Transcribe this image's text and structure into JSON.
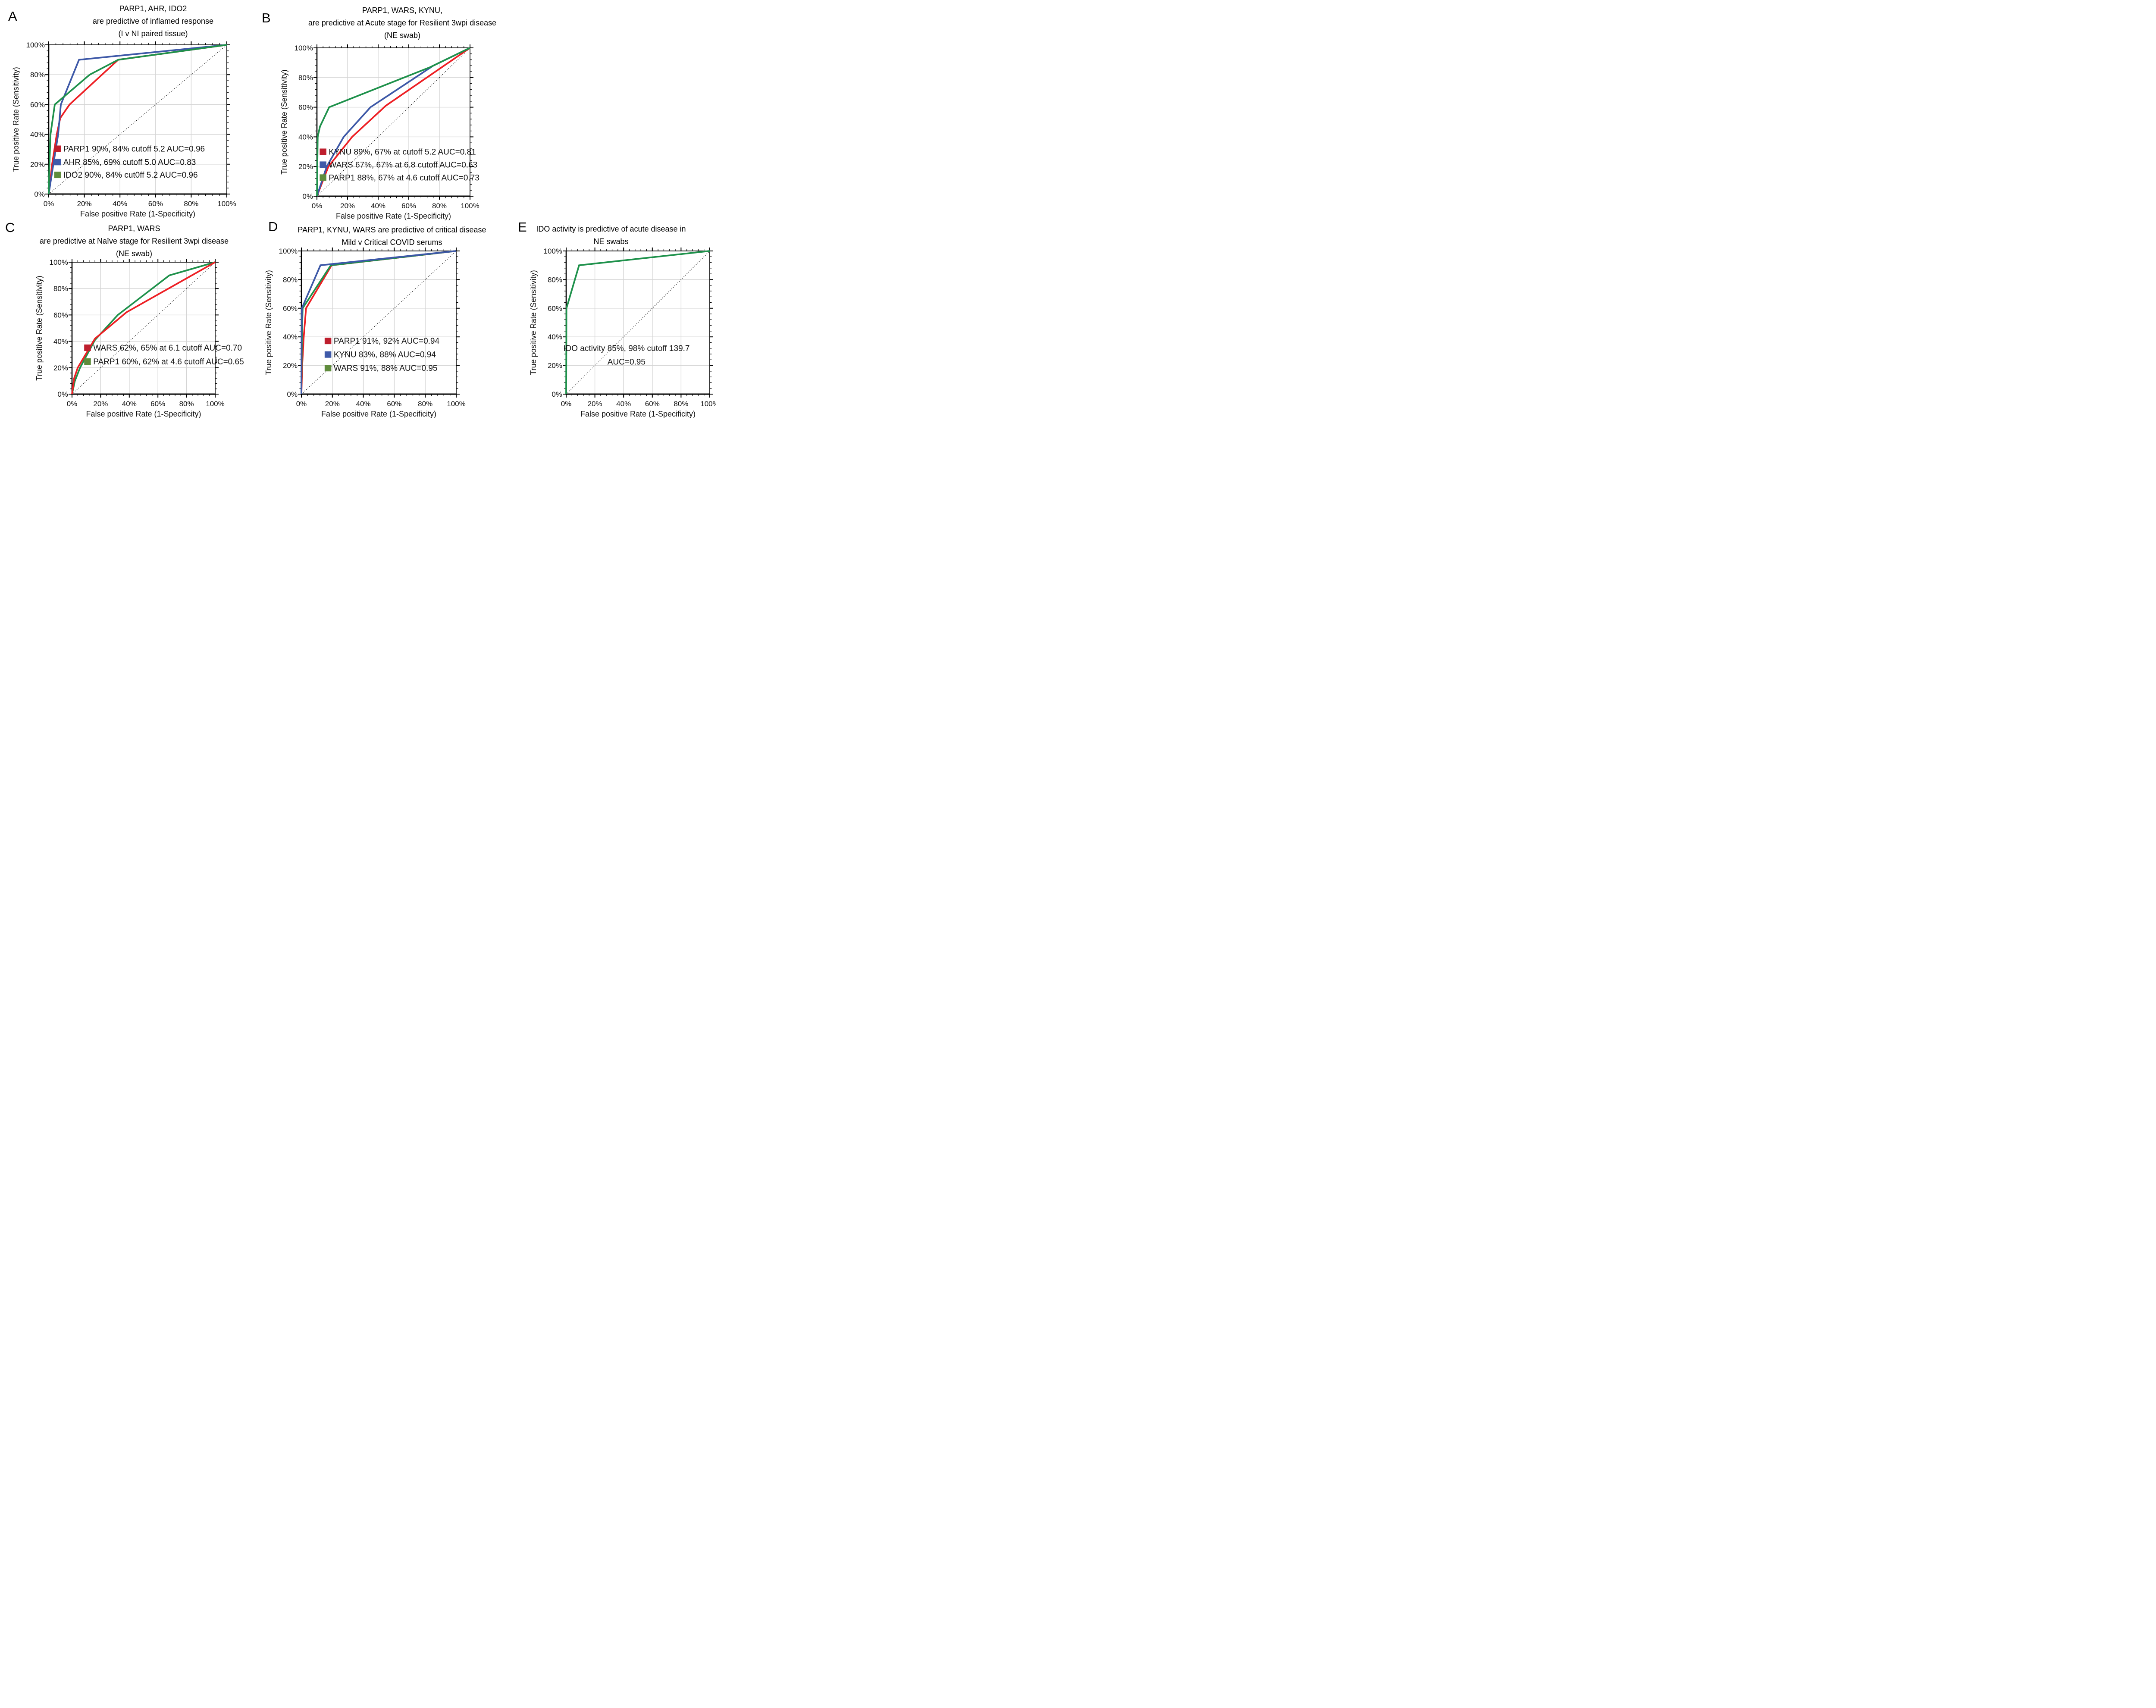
{
  "figure": {
    "background_color": "#ffffff",
    "description_visible_panels": [
      "A",
      "B",
      "C",
      "D",
      "E"
    ]
  },
  "colors": {
    "curve_red": "#ED1F24",
    "curve_blue": "#3D58A7",
    "curve_green": "#1E914B",
    "swatch_red": "#BE1E2D",
    "swatch_blue": "#3F5AA9",
    "swatch_green": "#5F8C3C",
    "gridline": "#D5D5D5",
    "axis": "#000000"
  },
  "panels": [
    {
      "label": "A",
      "title_lines": [
        "PARP1, AHR, IDO2",
        "are predictive of inflamed response",
        "(I v NI paired tissue)"
      ],
      "x_axis": {
        "label": "False positive Rate (1-Specificity)",
        "tick_labels": [
          "0%",
          "20%",
          "40%",
          "60%",
          "80%",
          "100%"
        ]
      },
      "y_axis": {
        "label": "True positive Rate (Sensitivity)",
        "tick_labels": [
          "0%",
          "20%",
          "40%",
          "60%",
          "80%",
          "100%"
        ]
      },
      "legend": [
        {
          "text": "PARP1 90%, 84% cutoff 5.2 AUC=0.96",
          "swatch_color": "#BE1E2D"
        },
        {
          "text": "AHR 85%, 69% cutoff 5.0 AUC=0.83",
          "swatch_color": "#3F5AA9"
        },
        {
          "text": "IDO2 90%, 84% cut0ff 5.2 AUC=0.96",
          "swatch_color": "#5F8C3C"
        }
      ]
    },
    {
      "label": "B",
      "title_lines": [
        "PARP1, WARS, KYNU,",
        "are predictive at Acute stage for Resilient 3wpi disease",
        "(NE swab)"
      ],
      "x_axis": {
        "label": "False positive Rate (1-Specificity)",
        "tick_labels": [
          "0%",
          "20%",
          "40%",
          "60%",
          "80%",
          "100%"
        ]
      },
      "y_axis": {
        "label": "True positive Rate (Sensitivity)",
        "tick_labels": [
          "0%",
          "20%",
          "40%",
          "60%",
          "80%",
          "100%"
        ]
      },
      "legend": [
        {
          "text": "KYNU 89%, 67% at cutoff 5.2 AUC=0.81",
          "swatch_color": "#BE1E2D"
        },
        {
          "text": "WARS 67%, 67% at 6.8 cutoff AUC=0.63",
          "swatch_color": "#3F5AA9"
        },
        {
          "text": "PARP1 88%, 67% at 4.6 cutoff AUC=0.73",
          "swatch_color": "#5F8C3C"
        }
      ]
    },
    {
      "label": "C",
      "title_lines": [
        "PARP1, WARS",
        "are predictive at Naïve stage for Resilient 3wpi disease",
        "(NE swab)"
      ],
      "x_axis": {
        "label": "False positive Rate (1-Specificity)",
        "tick_labels": [
          "0%",
          "20%",
          "40%",
          "60%",
          "80%",
          "100%"
        ]
      },
      "y_axis": {
        "label": "True positive Rate (Sensitivity)",
        "tick_labels": [
          "0%",
          "20%",
          "40%",
          "60%",
          "80%",
          "100%"
        ]
      },
      "legend": [
        {
          "text": "WARS 62%, 65% at 6.1 cutoff AUC=0.70",
          "swatch_color": "#BE1E2D"
        },
        {
          "text": "PARP1 60%, 62% at 4.6 cutoff AUC=0.65",
          "swatch_color": "#5F8C3C"
        }
      ]
    },
    {
      "label": "D",
      "title_lines": [
        "PARP1, KYNU, WARS are predictive of critical disease",
        "Mild v Critical COVID serums"
      ],
      "x_axis": {
        "label": "False positive Rate (1-Specificity)",
        "tick_labels": [
          "0%",
          "20%",
          "40%",
          "60%",
          "80%",
          "100%"
        ]
      },
      "y_axis": {
        "label": "True positive Rate (Sensitivity)",
        "tick_labels": [
          "0%",
          "20%",
          "40%",
          "60%",
          "80%",
          "100%"
        ]
      },
      "legend": [
        {
          "text": "PARP1 91%, 92% AUC=0.94",
          "swatch_color": "#BE1E2D"
        },
        {
          "text": "KYNU 83%, 88% AUC=0.94",
          "swatch_color": "#3F5AA9"
        },
        {
          "text": "WARS 91%, 88% AUC=0.95",
          "swatch_color": "#5F8C3C"
        }
      ]
    },
    {
      "label": "E",
      "title_lines": [
        "IDO activity is predictive of acute disease in",
        "NE swabs"
      ],
      "x_axis": {
        "label": "False positive Rate (1-Specificity)",
        "tick_labels": [
          "0%",
          "20%",
          "40%",
          "60%",
          "80%",
          "100%"
        ]
      },
      "y_axis": {
        "label": "True positive Rate (Sensitivity)",
        "tick_labels": [
          "0%",
          "20%",
          "40%",
          "60%",
          "80%",
          "100%"
        ]
      },
      "legend": [],
      "annotation_lines": [
        "IDO activity 85%, 98% cutoff 139.7",
        "AUC=0.95"
      ]
    }
  ],
  "chart_data": [
    {
      "type": "line",
      "panel": "A",
      "title": "PARP1, AHR, IDO2 are predictive of inflamed response (I v NI paired tissue)",
      "xlabel": "False positive Rate (1-Specificity)",
      "ylabel": "True positive Rate (Sensitivity)",
      "xlim": [
        0,
        100
      ],
      "ylim": [
        0,
        100
      ],
      "x_ticks_percent": [
        0,
        20,
        40,
        60,
        80,
        100
      ],
      "y_ticks_percent": [
        0,
        20,
        40,
        60,
        80,
        100
      ],
      "grid": true,
      "diagonal_reference": true,
      "series": [
        {
          "name": "PARP1",
          "color": "#ED1F24",
          "sensitivity_pct": 90,
          "specificity_pct": 84,
          "cutoff": 5.2,
          "auc": 0.96,
          "points_fpr_tpr_pct": [
            [
              0,
              0
            ],
            [
              1.9,
              20
            ],
            [
              4.5,
              40
            ],
            [
              6.5,
              51
            ],
            [
              11.7,
              60
            ],
            [
              39,
              90
            ],
            [
              100,
              100
            ]
          ]
        },
        {
          "name": "AHR",
          "color": "#3D58A7",
          "sensitivity_pct": 85,
          "specificity_pct": 69,
          "cutoff": 5.0,
          "auc": 0.83,
          "points_fpr_tpr_pct": [
            [
              0,
              0
            ],
            [
              2.6,
              20
            ],
            [
              5.3,
              40
            ],
            [
              6.8,
              60
            ],
            [
              17,
              90
            ],
            [
              100,
              100
            ]
          ]
        },
        {
          "name": "IDO2",
          "color": "#1E914B",
          "sensitivity_pct": 90,
          "specificity_pct": 84,
          "cutoff": 5.2,
          "auc": 0.96,
          "points_fpr_tpr_pct": [
            [
              0,
              0
            ],
            [
              0.4,
              20
            ],
            [
              1,
              40
            ],
            [
              3.4,
              60
            ],
            [
              23,
              80
            ],
            [
              39,
              90
            ],
            [
              100,
              100
            ]
          ]
        }
      ]
    },
    {
      "type": "line",
      "panel": "B",
      "title": "PARP1, WARS, KYNU, are predictive at Acute stage for Resilient 3wpi disease (NE swab)",
      "xlabel": "False positive Rate (1-Specificity)",
      "ylabel": "True positive Rate (Sensitivity)",
      "xlim": [
        0,
        100
      ],
      "ylim": [
        0,
        100
      ],
      "x_ticks_percent": [
        0,
        20,
        40,
        60,
        80,
        100
      ],
      "y_ticks_percent": [
        0,
        20,
        40,
        60,
        80,
        100
      ],
      "grid": true,
      "diagonal_reference": true,
      "series": [
        {
          "name": "KYNU",
          "color": "#ED1F24",
          "sensitivity_pct": 89,
          "specificity_pct": 67,
          "cutoff": 5.2,
          "auc": 0.81,
          "points_fpr_tpr_pct": [
            [
              0,
              0
            ],
            [
              7.5,
              20
            ],
            [
              23,
              40
            ],
            [
              45,
              61
            ],
            [
              100,
              100
            ]
          ]
        },
        {
          "name": "WARS",
          "color": "#3D58A7",
          "sensitivity_pct": 67,
          "specificity_pct": 67,
          "cutoff": 6.8,
          "auc": 0.63,
          "points_fpr_tpr_pct": [
            [
              0,
              0
            ],
            [
              6.4,
              20
            ],
            [
              17.5,
              40
            ],
            [
              35,
              60
            ],
            [
              76,
              88
            ],
            [
              100,
              100
            ]
          ]
        },
        {
          "name": "PARP1",
          "color": "#1E914B",
          "sensitivity_pct": 88,
          "specificity_pct": 67,
          "cutoff": 4.6,
          "auc": 0.73,
          "points_fpr_tpr_pct": [
            [
              0,
              0
            ],
            [
              0.5,
              40
            ],
            [
              2,
              47
            ],
            [
              8,
              60
            ],
            [
              74,
              87
            ],
            [
              100,
              100
            ]
          ]
        }
      ]
    },
    {
      "type": "line",
      "panel": "C",
      "title": "PARP1, WARS are predictive at Naïve stage for Resilient 3wpi disease (NE swab)",
      "xlabel": "False positive Rate (1-Specificity)",
      "ylabel": "True positive Rate (Sensitivity)",
      "xlim": [
        0,
        100
      ],
      "ylim": [
        0,
        100
      ],
      "x_ticks_percent": [
        0,
        20,
        40,
        60,
        80,
        100
      ],
      "y_ticks_percent": [
        0,
        20,
        40,
        60,
        80,
        100
      ],
      "grid": true,
      "diagonal_reference": true,
      "series": [
        {
          "name": "PARP1",
          "color": "#1E914B",
          "sensitivity_pct": 60,
          "specificity_pct": 62,
          "cutoff": 4.6,
          "auc": 0.65,
          "points_fpr_tpr_pct": [
            [
              0,
              0
            ],
            [
              2,
              10
            ],
            [
              5.6,
              20
            ],
            [
              16,
              41
            ],
            [
              32,
              60
            ],
            [
              68,
              90
            ],
            [
              100,
              100
            ]
          ]
        },
        {
          "name": "WARS",
          "color": "#ED1F24",
          "sensitivity_pct": 62,
          "specificity_pct": 65,
          "cutoff": 6.1,
          "auc": 0.7,
          "points_fpr_tpr_pct": [
            [
              0,
              0
            ],
            [
              1.5,
              12
            ],
            [
              4,
              20
            ],
            [
              16,
              42
            ],
            [
              38,
              62
            ],
            [
              100,
              100
            ]
          ]
        }
      ]
    },
    {
      "type": "line",
      "panel": "D",
      "title": "PARP1, KYNU, WARS are predictive of critical disease Mild v Critical COVID serums",
      "xlabel": "False positive Rate (1-Specificity)",
      "ylabel": "True positive Rate (Sensitivity)",
      "xlim": [
        0,
        100
      ],
      "ylim": [
        0,
        100
      ],
      "x_ticks_percent": [
        0,
        20,
        40,
        60,
        80,
        100
      ],
      "y_ticks_percent": [
        0,
        20,
        40,
        60,
        80,
        100
      ],
      "grid": true,
      "diagonal_reference": true,
      "series": [
        {
          "name": "PARP1",
          "color": "#ED1F24",
          "sensitivity_pct": 91,
          "specificity_pct": 92,
          "auc": 0.94,
          "points_fpr_tpr_pct": [
            [
              0,
              0
            ],
            [
              0.5,
              20
            ],
            [
              1.5,
              40
            ],
            [
              3,
              60
            ],
            [
              19.5,
              90
            ],
            [
              100,
              100
            ]
          ]
        },
        {
          "name": "WARS",
          "color": "#1E914B",
          "sensitivity_pct": 91,
          "specificity_pct": 88,
          "auc": 0.95,
          "points_fpr_tpr_pct": [
            [
              0,
              0
            ],
            [
              0.3,
              40
            ],
            [
              0.8,
              60
            ],
            [
              19,
              90
            ],
            [
              100,
              100
            ]
          ]
        },
        {
          "name": "KYNU",
          "color": "#3D58A7",
          "sensitivity_pct": 83,
          "specificity_pct": 88,
          "auc": 0.94,
          "points_fpr_tpr_pct": [
            [
              0,
              0
            ],
            [
              0.1,
              40
            ],
            [
              0.3,
              60
            ],
            [
              12.3,
              90
            ],
            [
              100,
              100
            ]
          ]
        }
      ]
    },
    {
      "type": "line",
      "panel": "E",
      "title": "IDO activity is predictive of acute disease in NE swabs",
      "xlabel": "False positive Rate (1-Specificity)",
      "ylabel": "True positive Rate (Sensitivity)",
      "xlim": [
        0,
        100
      ],
      "ylim": [
        0,
        100
      ],
      "x_ticks_percent": [
        0,
        20,
        40,
        60,
        80,
        100
      ],
      "y_ticks_percent": [
        0,
        20,
        40,
        60,
        80,
        100
      ],
      "grid": true,
      "diagonal_reference": true,
      "series": [
        {
          "name": "IDO activity",
          "color": "#1E914B",
          "sensitivity_pct": 85,
          "specificity_pct": 98,
          "cutoff": 139.7,
          "auc": 0.95,
          "points_fpr_tpr_pct": [
            [
              0,
              0
            ],
            [
              0.2,
              60
            ],
            [
              9,
              90
            ],
            [
              100,
              100
            ]
          ]
        }
      ]
    }
  ]
}
